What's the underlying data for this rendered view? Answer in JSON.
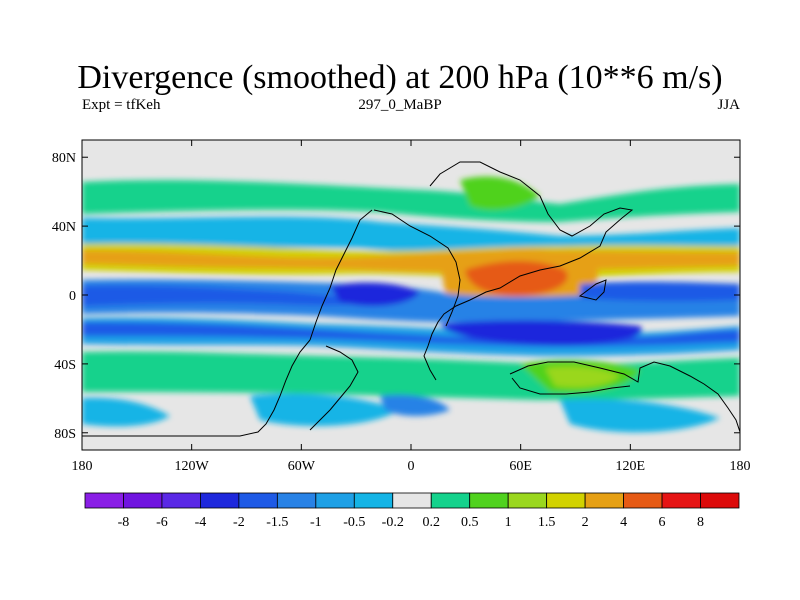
{
  "header": {
    "title": "Divergence (smoothed) at 200 hPa (10**6 m/s)",
    "left_label": "Expt = tfKeh",
    "center_label": "297_0_MaBP",
    "right_label": "JJA"
  },
  "chart_data": {
    "type": "heatmap",
    "title": "Divergence (smoothed) at 200 hPa (10**6 m/s)",
    "xlim": [
      -180,
      180
    ],
    "ylim": [
      -90,
      90
    ],
    "x_ticks": [
      {
        "value": -180,
        "label": "180"
      },
      {
        "value": -120,
        "label": "120W"
      },
      {
        "value": -60,
        "label": "60W"
      },
      {
        "value": 0,
        "label": "0"
      },
      {
        "value": 60,
        "label": "60E"
      },
      {
        "value": 120,
        "label": "120E"
      },
      {
        "value": 180,
        "label": "180"
      }
    ],
    "y_ticks": [
      {
        "value": 80,
        "label": "80N"
      },
      {
        "value": 40,
        "label": "40N"
      },
      {
        "value": 0,
        "label": "0"
      },
      {
        "value": -40,
        "label": "40S"
      },
      {
        "value": -80,
        "label": "80S"
      }
    ],
    "colorbar": {
      "labels": [
        "-8",
        "-6",
        "-4",
        "-2",
        "-1.5",
        "-1",
        "-0.5",
        "-0.2",
        "0.2",
        "0.5",
        "1",
        "1.5",
        "2",
        "4",
        "6",
        "8"
      ],
      "colors": [
        "#8a1ee6",
        "#7014e0",
        "#5a28e6",
        "#1e28dc",
        "#1e5ae6",
        "#2882e6",
        "#1ea0e6",
        "#14b4e6",
        "#e6e6e6",
        "#14d28c",
        "#50d21e",
        "#9ad71e",
        "#d2d200",
        "#e6a014",
        "#e65a14",
        "#e61414",
        "#dc0a0a"
      ]
    },
    "background_color": "#e6e6e6",
    "bands": [
      {
        "lat_range": [
          45,
          58
        ],
        "level": "0.5",
        "note": "northern mid-latitude band"
      },
      {
        "lat_range": [
          12,
          22
        ],
        "level": "2",
        "note": "northern tropical band"
      },
      {
        "lat_range": [
          -5,
          5
        ],
        "level": "-4",
        "note": "equatorial band"
      },
      {
        "lat_range": [
          -25,
          -15
        ],
        "level": "-2",
        "note": "southern subtropical band"
      },
      {
        "lat_range": [
          -55,
          -38
        ],
        "level": "0.5",
        "note": "southern mid-latitude band"
      }
    ]
  }
}
